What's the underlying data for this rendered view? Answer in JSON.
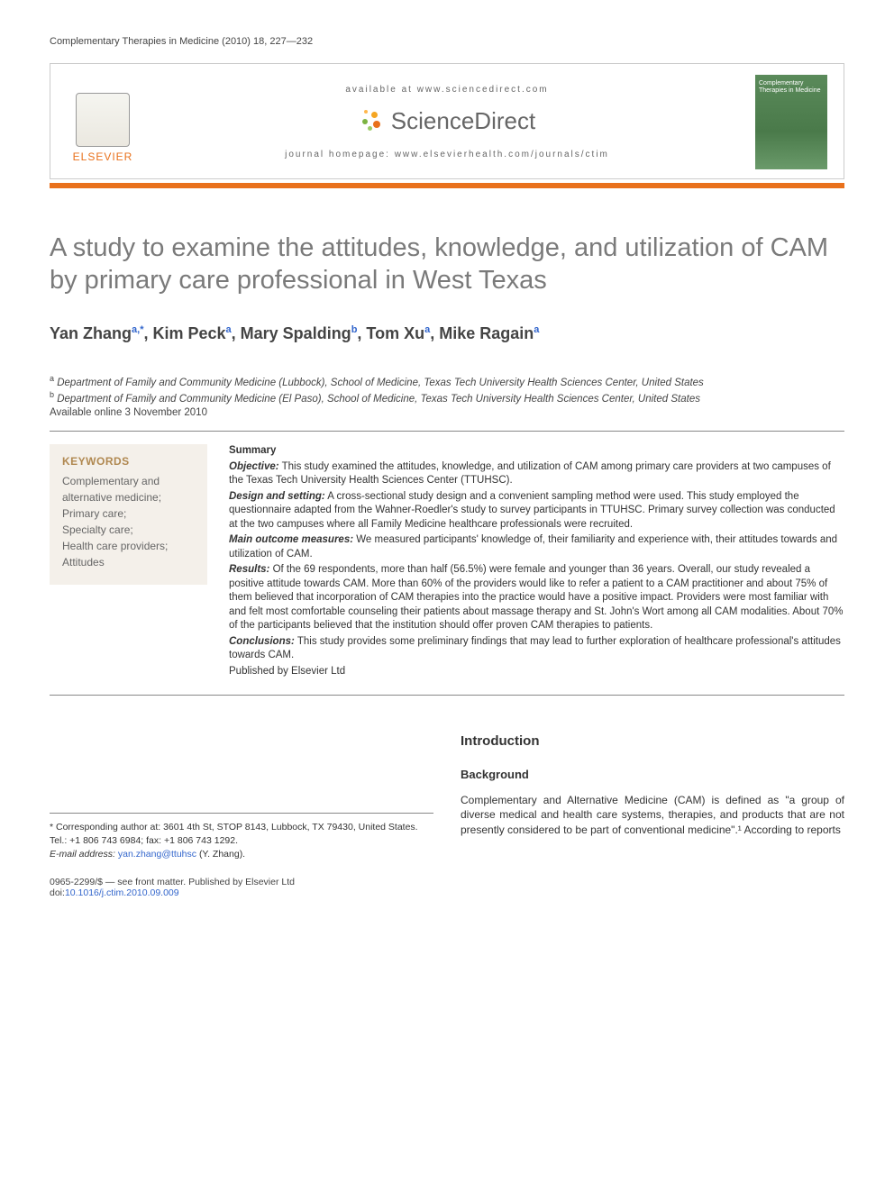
{
  "running_head": "Complementary Therapies in Medicine (2010) 18, 227—232",
  "masthead": {
    "elsevier": "ELSEVIER",
    "available_line": "available at www.sciencedirect.com",
    "sd_brand": "ScienceDirect",
    "journal_homepage": "journal homepage: www.elsevierhealth.com/journals/ctim",
    "cover_text": "Complementary Therapies in Medicine"
  },
  "colors": {
    "accent_orange": "#e9711c",
    "title_grey": "#7a7a7a",
    "kw_tan_bg": "#f4f0ea",
    "kw_tan_head": "#b08850",
    "link_blue": "#3366cc",
    "cover_green_top": "#5a8a5a",
    "cover_green_bot": "#4a7a4a"
  },
  "title": "A study to examine the attitudes, knowledge, and utilization of CAM by primary care professional in West Texas",
  "authors_html": "Yan Zhang",
  "authors": [
    {
      "name": "Yan Zhang",
      "sup": "a,*"
    },
    {
      "name": "Kim Peck",
      "sup": "a"
    },
    {
      "name": "Mary Spalding",
      "sup": "b"
    },
    {
      "name": "Tom Xu",
      "sup": "a"
    },
    {
      "name": "Mike Ragain",
      "sup": "a"
    }
  ],
  "affiliations": {
    "a": "Department of Family and Community Medicine (Lubbock), School of Medicine, Texas Tech University Health Sciences Center, United States",
    "b": "Department of Family and Community Medicine (El Paso), School of Medicine, Texas Tech University Health Sciences Center, United States"
  },
  "available_online": "Available online 3 November 2010",
  "keywords_head": "KEYWORDS",
  "keywords": "Complementary and alternative medicine;\nPrimary care;\nSpecialty care;\nHealth care providers;\nAttitudes",
  "summary": {
    "head": "Summary",
    "objective_label": "Objective:",
    "objective": "This study examined the attitudes, knowledge, and utilization of CAM among primary care providers at two campuses of the Texas Tech University Health Sciences Center (TTUHSC).",
    "design_label": "Design and setting:",
    "design": "A cross-sectional study design and a convenient sampling method were used. This study employed the questionnaire adapted from the Wahner-Roedler's study to survey participants in TTUHSC. Primary survey collection was conducted at the two campuses where all Family Medicine healthcare professionals were recruited.",
    "outcome_label": "Main outcome measures:",
    "outcome": "We measured participants' knowledge of, their familiarity and experience with, their attitudes towards and utilization of CAM.",
    "results_label": "Results:",
    "results": "Of the 69 respondents, more than half (56.5%) were female and younger than 36 years. Overall, our study revealed a positive attitude towards CAM. More than 60% of the providers would like to refer a patient to a CAM practitioner and about 75% of them believed that incorporation of CAM therapies into the practice would have a positive impact. Providers were most familiar with and felt most comfortable counseling their patients about massage therapy and St. John's Wort among all CAM modalities. About 70% of the participants believed that the institution should offer proven CAM therapies to patients.",
    "conclusions_label": "Conclusions:",
    "conclusions": "This study provides some preliminary findings that may lead to further exploration of healthcare professional's attitudes towards CAM.",
    "published": "Published by Elsevier Ltd"
  },
  "intro_head": "Introduction",
  "background_head": "Background",
  "background_text": "Complementary and Alternative Medicine (CAM) is defined as \"a group of diverse medical and health care systems, therapies, and products that are not presently considered to be part of conventional medicine\".¹ According to reports",
  "corr_author": "* Corresponding author at: 3601 4th St, STOP 8143, Lubbock, TX 79430, United States. Tel.: +1 806 743 6984; fax: +1 806 743 1292.",
  "email_label": "E-mail address:",
  "email": "yan.zhang@ttuhsc",
  "email_suffix": "(Y. Zhang).",
  "copyright_line": "0965-2299/$ — see front matter. Published by Elsevier Ltd",
  "doi_label": "doi:",
  "doi": "10.1016/j.ctim.2010.09.009"
}
